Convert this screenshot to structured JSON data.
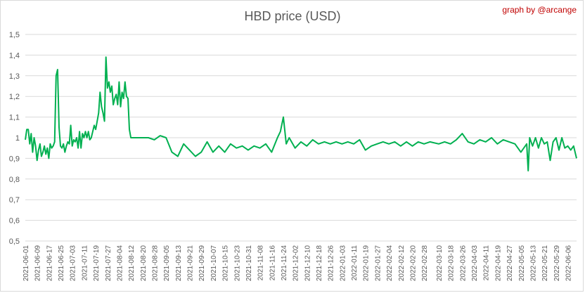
{
  "credit": "graph by @arcange",
  "chart_data": {
    "type": "line",
    "title": "HBD price (USD)",
    "xlabel": "",
    "ylabel": "",
    "ylim": [
      0.5,
      1.5
    ],
    "y_ticks": [
      "0,5",
      "0,6",
      "0,7",
      "0,8",
      "0,9",
      "1",
      "1,1",
      "1,2",
      "1,3",
      "1,4",
      "1,5"
    ],
    "x_start": "2021-06-01",
    "x_end": "2022-06-12",
    "x_ticks": [
      "2021-06-01",
      "2021-06-09",
      "2021-06-17",
      "2021-06-25",
      "2021-07-03",
      "2021-07-11",
      "2021-07-19",
      "2021-07-27",
      "2021-08-04",
      "2021-08-12",
      "2021-08-20",
      "2021-08-28",
      "2021-09-05",
      "2021-09-13",
      "2021-09-21",
      "2021-09-29",
      "2021-10-07",
      "2021-10-15",
      "2021-10-23",
      "2021-10-31",
      "2021-11-08",
      "2021-11-16",
      "2021-11-24",
      "2021-12-02",
      "2021-12-10",
      "2021-12-18",
      "2021-12-26",
      "2022-01-03",
      "2022-01-11",
      "2022-01-19",
      "2022-01-27",
      "2022-02-04",
      "2022-02-12",
      "2022-02-20",
      "2022-02-28",
      "2022-03-10",
      "2022-03-18",
      "2022-03-26",
      "2022-04-03",
      "2022-04-11",
      "2022-04-19",
      "2022-04-27",
      "2022-05-05",
      "2022-05-13",
      "2022-05-21",
      "2022-05-29",
      "2022-06-06"
    ],
    "grid": true,
    "legend": "none",
    "series_color": "#00b050",
    "points": [
      [
        "2021-06-01",
        0.99
      ],
      [
        "2021-06-02",
        1.04
      ],
      [
        "2021-06-03",
        1.04
      ],
      [
        "2021-06-04",
        0.97
      ],
      [
        "2021-06-05",
        1.02
      ],
      [
        "2021-06-06",
        0.93
      ],
      [
        "2021-06-07",
        1.0
      ],
      [
        "2021-06-08",
        0.96
      ],
      [
        "2021-06-09",
        0.89
      ],
      [
        "2021-06-10",
        0.94
      ],
      [
        "2021-06-11",
        0.97
      ],
      [
        "2021-06-12",
        0.91
      ],
      [
        "2021-06-13",
        0.93
      ],
      [
        "2021-06-14",
        0.96
      ],
      [
        "2021-06-15",
        0.92
      ],
      [
        "2021-06-16",
        0.95
      ],
      [
        "2021-06-17",
        0.9
      ],
      [
        "2021-06-18",
        0.97
      ],
      [
        "2021-06-19",
        0.95
      ],
      [
        "2021-06-20",
        0.96
      ],
      [
        "2021-06-21",
        0.98
      ],
      [
        "2021-06-22",
        1.3
      ],
      [
        "2021-06-23",
        1.33
      ],
      [
        "2021-06-24",
        1.05
      ],
      [
        "2021-06-25",
        0.96
      ],
      [
        "2021-06-26",
        0.95
      ],
      [
        "2021-06-27",
        0.97
      ],
      [
        "2021-06-28",
        0.93
      ],
      [
        "2021-06-29",
        0.96
      ],
      [
        "2021-06-30",
        0.98
      ],
      [
        "2021-07-01",
        0.97
      ],
      [
        "2021-07-02",
        1.06
      ],
      [
        "2021-07-03",
        0.96
      ],
      [
        "2021-07-04",
        0.99
      ],
      [
        "2021-07-05",
        0.98
      ],
      [
        "2021-07-06",
        1.0
      ],
      [
        "2021-07-07",
        0.95
      ],
      [
        "2021-07-08",
        1.03
      ],
      [
        "2021-07-09",
        0.95
      ],
      [
        "2021-07-10",
        1.02
      ],
      [
        "2021-07-11",
        1.0
      ],
      [
        "2021-07-12",
        1.03
      ],
      [
        "2021-07-13",
        1.0
      ],
      [
        "2021-07-14",
        1.03
      ],
      [
        "2021-07-15",
        0.99
      ],
      [
        "2021-07-16",
        1.0
      ],
      [
        "2021-07-17",
        1.03
      ],
      [
        "2021-07-18",
        1.06
      ],
      [
        "2021-07-19",
        1.04
      ],
      [
        "2021-07-20",
        1.08
      ],
      [
        "2021-07-21",
        1.12
      ],
      [
        "2021-07-22",
        1.22
      ],
      [
        "2021-07-23",
        1.15
      ],
      [
        "2021-07-24",
        1.12
      ],
      [
        "2021-07-25",
        1.08
      ],
      [
        "2021-07-26",
        1.39
      ],
      [
        "2021-07-27",
        1.24
      ],
      [
        "2021-07-28",
        1.27
      ],
      [
        "2021-07-29",
        1.22
      ],
      [
        "2021-07-30",
        1.25
      ],
      [
        "2021-07-31",
        1.16
      ],
      [
        "2021-08-01",
        1.19
      ],
      [
        "2021-08-02",
        1.21
      ],
      [
        "2021-08-03",
        1.16
      ],
      [
        "2021-08-04",
        1.27
      ],
      [
        "2021-08-05",
        1.15
      ],
      [
        "2021-08-06",
        1.22
      ],
      [
        "2021-08-07",
        1.19
      ],
      [
        "2021-08-08",
        1.27
      ],
      [
        "2021-08-09",
        1.2
      ],
      [
        "2021-08-10",
        1.19
      ],
      [
        "2021-08-11",
        1.04
      ],
      [
        "2021-08-12",
        1.0
      ],
      [
        "2021-08-16",
        1.0
      ],
      [
        "2021-08-20",
        1.0
      ],
      [
        "2021-08-24",
        1.0
      ],
      [
        "2021-08-28",
        0.99
      ],
      [
        "2021-09-01",
        1.01
      ],
      [
        "2021-09-05",
        1.0
      ],
      [
        "2021-09-09",
        0.93
      ],
      [
        "2021-09-13",
        0.91
      ],
      [
        "2021-09-17",
        0.97
      ],
      [
        "2021-09-21",
        0.94
      ],
      [
        "2021-09-25",
        0.91
      ],
      [
        "2021-09-29",
        0.93
      ],
      [
        "2021-10-03",
        0.98
      ],
      [
        "2021-10-07",
        0.93
      ],
      [
        "2021-10-11",
        0.96
      ],
      [
        "2021-10-15",
        0.93
      ],
      [
        "2021-10-19",
        0.97
      ],
      [
        "2021-10-23",
        0.95
      ],
      [
        "2021-10-27",
        0.96
      ],
      [
        "2021-10-31",
        0.94
      ],
      [
        "2021-11-04",
        0.96
      ],
      [
        "2021-11-08",
        0.95
      ],
      [
        "2021-11-12",
        0.97
      ],
      [
        "2021-11-16",
        0.93
      ],
      [
        "2021-11-20",
        1.0
      ],
      [
        "2021-11-22",
        1.03
      ],
      [
        "2021-11-24",
        1.1
      ],
      [
        "2021-11-26",
        0.97
      ],
      [
        "2021-11-28",
        1.0
      ],
      [
        "2021-12-02",
        0.95
      ],
      [
        "2021-12-06",
        0.98
      ],
      [
        "2021-12-10",
        0.96
      ],
      [
        "2021-12-14",
        0.99
      ],
      [
        "2021-12-18",
        0.97
      ],
      [
        "2021-12-22",
        0.98
      ],
      [
        "2021-12-26",
        0.97
      ],
      [
        "2021-12-30",
        0.98
      ],
      [
        "2022-01-03",
        0.97
      ],
      [
        "2022-01-07",
        0.98
      ],
      [
        "2022-01-11",
        0.97
      ],
      [
        "2022-01-15",
        0.99
      ],
      [
        "2022-01-19",
        0.94
      ],
      [
        "2022-01-23",
        0.96
      ],
      [
        "2022-01-27",
        0.97
      ],
      [
        "2022-01-31",
        0.98
      ],
      [
        "2022-02-04",
        0.97
      ],
      [
        "2022-02-08",
        0.98
      ],
      [
        "2022-02-12",
        0.96
      ],
      [
        "2022-02-16",
        0.98
      ],
      [
        "2022-02-20",
        0.96
      ],
      [
        "2022-02-24",
        0.98
      ],
      [
        "2022-02-28",
        0.97
      ],
      [
        "2022-03-04",
        0.98
      ],
      [
        "2022-03-10",
        0.97
      ],
      [
        "2022-03-14",
        0.98
      ],
      [
        "2022-03-18",
        0.97
      ],
      [
        "2022-03-22",
        0.99
      ],
      [
        "2022-03-26",
        1.02
      ],
      [
        "2022-03-30",
        0.98
      ],
      [
        "2022-04-03",
        0.97
      ],
      [
        "2022-04-07",
        0.99
      ],
      [
        "2022-04-11",
        0.98
      ],
      [
        "2022-04-15",
        1.0
      ],
      [
        "2022-04-19",
        0.97
      ],
      [
        "2022-04-23",
        0.99
      ],
      [
        "2022-04-27",
        0.98
      ],
      [
        "2022-05-01",
        0.97
      ],
      [
        "2022-05-05",
        0.93
      ],
      [
        "2022-05-09",
        0.97
      ],
      [
        "2022-05-10",
        0.84
      ],
      [
        "2022-05-11",
        1.0
      ],
      [
        "2022-05-13",
        0.96
      ],
      [
        "2022-05-15",
        1.0
      ],
      [
        "2022-05-17",
        0.95
      ],
      [
        "2022-05-19",
        1.0
      ],
      [
        "2022-05-21",
        0.97
      ],
      [
        "2022-05-23",
        0.98
      ],
      [
        "2022-05-25",
        0.89
      ],
      [
        "2022-05-27",
        0.98
      ],
      [
        "2022-05-29",
        1.0
      ],
      [
        "2022-05-31",
        0.94
      ],
      [
        "2022-06-02",
        1.0
      ],
      [
        "2022-06-04",
        0.95
      ],
      [
        "2022-06-06",
        0.96
      ],
      [
        "2022-06-08",
        0.94
      ],
      [
        "2022-06-10",
        0.96
      ],
      [
        "2022-06-12",
        0.9
      ]
    ]
  }
}
